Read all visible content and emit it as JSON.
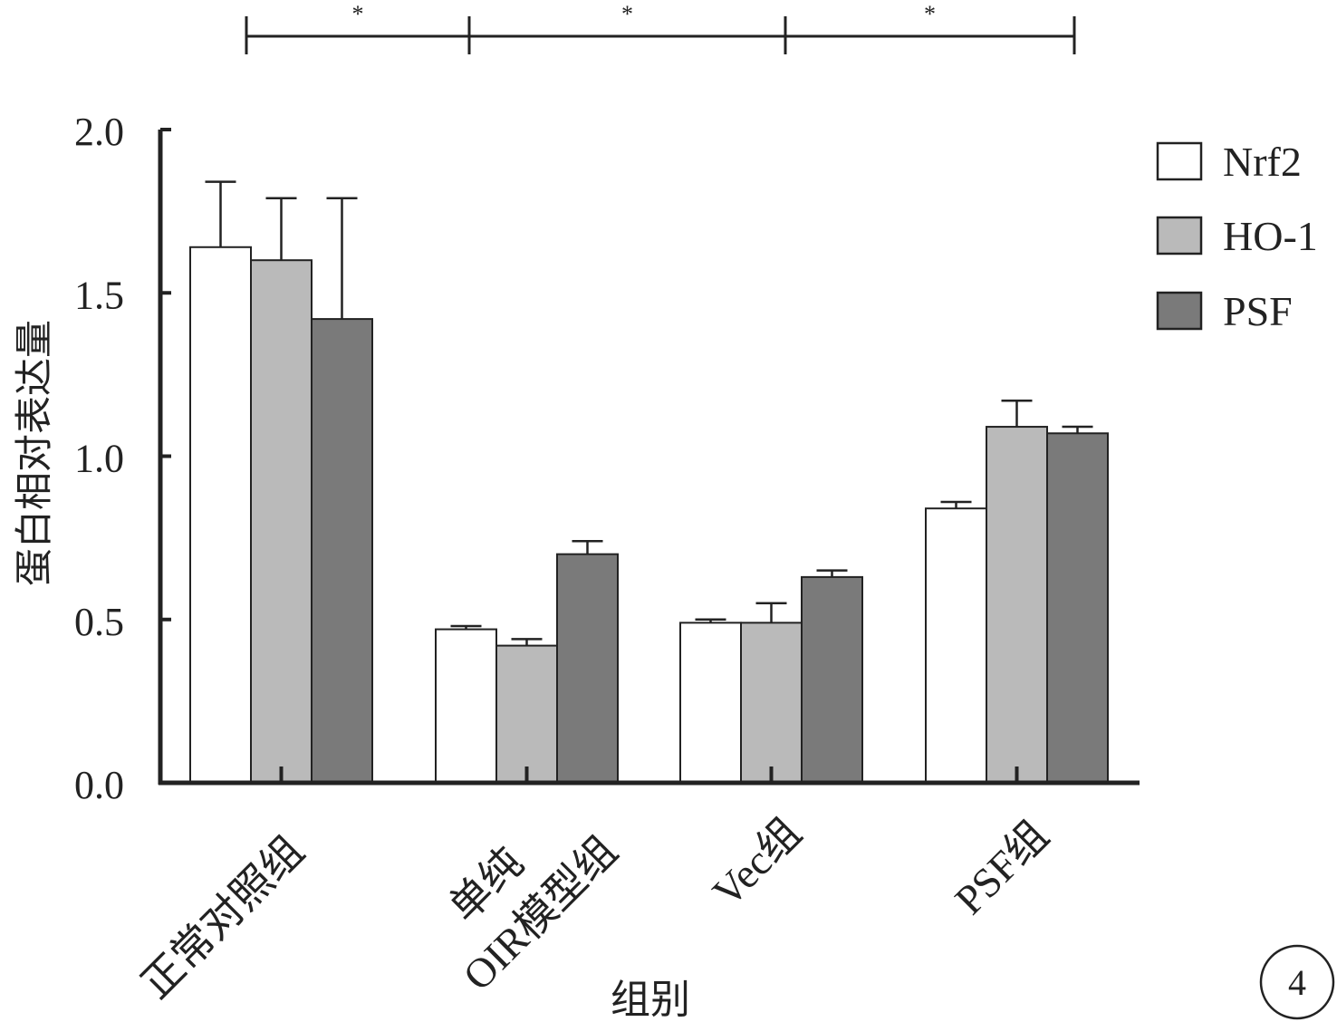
{
  "chart_data": {
    "type": "bar",
    "title": "",
    "xlabel": "组别",
    "ylabel": "蛋白相对表达量",
    "ylim": [
      0,
      2.0
    ],
    "yticks": [
      0.0,
      0.5,
      1.0,
      1.5,
      2.0
    ],
    "ytick_labels": [
      "0.0",
      "0.5",
      "1.0",
      "1.5",
      "2.0"
    ],
    "grid": false,
    "legend_position": "top-right",
    "categories": [
      "正常对照组",
      "单纯 OIR模型组",
      "Vec组",
      "PSF组"
    ],
    "category_lines": [
      [
        "正常对照组"
      ],
      [
        "单纯",
        "OIR模型组"
      ],
      [
        "Vec组"
      ],
      [
        "PSF组"
      ]
    ],
    "series": [
      {
        "name": "Nrf2",
        "color": "#ffffff",
        "values": [
          1.64,
          0.47,
          0.49,
          0.84
        ],
        "errors": [
          0.2,
          0.01,
          0.01,
          0.02
        ]
      },
      {
        "name": "HO-1",
        "color": "#bababa",
        "values": [
          1.6,
          0.42,
          0.49,
          1.09
        ],
        "errors": [
          0.19,
          0.02,
          0.06,
          0.08
        ]
      },
      {
        "name": "PSF",
        "color": "#7a7a7a",
        "values": [
          1.42,
          0.7,
          0.63,
          1.07
        ],
        "errors": [
          0.37,
          0.04,
          0.02,
          0.02
        ]
      }
    ],
    "significance": [
      {
        "from": 0,
        "to": 1,
        "label": "*"
      },
      {
        "from": 1,
        "to": 2,
        "label": "*"
      },
      {
        "from": 2,
        "to": 3,
        "label": "*"
      }
    ],
    "panel_label": "4"
  }
}
